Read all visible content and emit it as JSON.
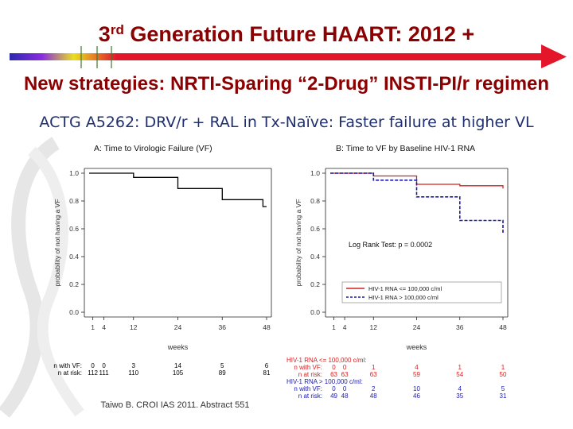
{
  "slide": {
    "title_main": "Generation Future HAART: 2012 +",
    "title_ordinal_number": "3",
    "title_ordinal_suffix": "rd",
    "title_secondary": "New strategies: NRTI-Sparing “2-Drug” INSTI-PI/r regimen",
    "subtitle": "ACTG A5262: DRV/r + RAL in Tx-Naïve: Faster failure at higher VL",
    "citation": "Taiwo B. CROI IAS 2011. Abstract 551",
    "colors": {
      "title": "#8b0000",
      "subtitle": "#1f2f6f",
      "arrow": "#e3162a",
      "series_low_vl": "#d42020",
      "series_high_vl": "#1a1aaa",
      "series_overall": "#000000"
    }
  },
  "chart_data": [
    {
      "type": "line",
      "step": true,
      "title": "A: Time to Virologic Failure (VF)",
      "xlabel": "weeks",
      "ylabel": "probability of not having a VF",
      "xlim": [
        0,
        48
      ],
      "ylim": [
        0,
        1
      ],
      "x_ticks": [
        1,
        4,
        12,
        24,
        36,
        48
      ],
      "y_ticks": [
        0.0,
        0.2,
        0.4,
        0.6,
        0.8,
        1.0
      ],
      "y_tick_labels": [
        "0.0",
        "0.2",
        "0.4",
        "0.6",
        "0.8",
        "1.0"
      ],
      "grid": false,
      "series": [
        {
          "name": "",
          "color": "#000000",
          "dashed": false,
          "points": [
            [
              0,
              1.0
            ],
            [
              12,
              1.0
            ],
            [
              12,
              0.97
            ],
            [
              24,
              0.97
            ],
            [
              24,
              0.89
            ],
            [
              36,
              0.89
            ],
            [
              36,
              0.81
            ],
            [
              47,
              0.81
            ],
            [
              47,
              0.76
            ],
            [
              48,
              0.76
            ]
          ]
        }
      ],
      "risk_table": {
        "group_labels": [],
        "rows": [
          {
            "label": "n with VF:",
            "values": [
              "0",
              "0",
              "3",
              "14",
              "5",
              "6"
            ],
            "color": "#000000"
          },
          {
            "label": "n at risk:",
            "values": [
              "112",
              "111",
              "110",
              "105",
              "89",
              "81"
            ],
            "color": "#000000"
          }
        ]
      }
    },
    {
      "type": "line",
      "step": true,
      "title": "B: Time to VF by Baseline HIV-1 RNA",
      "xlabel": "weeks",
      "ylabel": "probability of not having a VF",
      "xlim": [
        0,
        48
      ],
      "ylim": [
        0,
        1
      ],
      "x_ticks": [
        1,
        4,
        12,
        24,
        36,
        48
      ],
      "y_ticks": [
        0.0,
        0.2,
        0.4,
        0.6,
        0.8,
        1.0
      ],
      "y_tick_labels": [
        "0.0",
        "0.2",
        "0.4",
        "0.6",
        "0.8",
        "1.0"
      ],
      "grid": false,
      "annotation": "Log Rank Test: p = 0.0002",
      "legend_position": "bottom-right",
      "series": [
        {
          "name": "HIV-1 RNA <= 100,000 c/ml",
          "color": "#d42020",
          "dashed": false,
          "points": [
            [
              0,
              1.0
            ],
            [
              12,
              1.0
            ],
            [
              12,
              0.98
            ],
            [
              24,
              0.98
            ],
            [
              24,
              0.92
            ],
            [
              36,
              0.92
            ],
            [
              36,
              0.91
            ],
            [
              48,
              0.91
            ],
            [
              48,
              0.89
            ]
          ]
        },
        {
          "name": "HIV-1 RNA > 100,000 c/ml",
          "color": "#1a1aaa",
          "dashed": true,
          "points": [
            [
              0,
              1.0
            ],
            [
              12,
              1.0
            ],
            [
              12,
              0.95
            ],
            [
              24,
              0.95
            ],
            [
              24,
              0.83
            ],
            [
              36,
              0.83
            ],
            [
              36,
              0.66
            ],
            [
              48,
              0.66
            ],
            [
              48,
              0.56
            ]
          ]
        }
      ],
      "risk_table": {
        "group_labels": [
          {
            "text": "HIV-1 RNA <= 100,000 c/ml:",
            "color": "#d42020"
          },
          {
            "text": "HIV-1 RNA > 100,000 c/ml:",
            "color": "#1a1aaa"
          }
        ],
        "rows": [
          {
            "label": "n with VF:",
            "values": [
              "0",
              "0",
              "1",
              "4",
              "1",
              "1"
            ],
            "color": "#d42020"
          },
          {
            "label": "n at risk:",
            "values": [
              "63",
              "63",
              "63",
              "59",
              "54",
              "50"
            ],
            "color": "#d42020"
          },
          {
            "label": "n with VF:",
            "values": [
              "0",
              "0",
              "2",
              "10",
              "4",
              "5"
            ],
            "color": "#1a1aaa"
          },
          {
            "label": "n at risk:",
            "values": [
              "49",
              "48",
              "48",
              "46",
              "35",
              "31"
            ],
            "color": "#1a1aaa"
          }
        ]
      }
    }
  ]
}
